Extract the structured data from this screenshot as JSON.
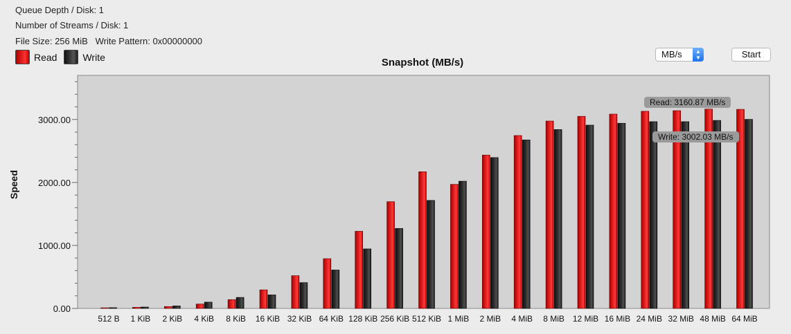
{
  "info": {
    "queue_depth": "Queue Depth / Disk: 1",
    "streams": "Number of Streams / Disk: 1",
    "file_size": "File Size: 256 MiB   Write Pattern: 0x00000000"
  },
  "legend": {
    "read_label": "Read",
    "write_label": "Write"
  },
  "controls": {
    "unit": "MB/s",
    "unit_stepper": "▲▼",
    "start_label": "Start"
  },
  "tooltips": {
    "read": "Read: 3160.87 MB/s",
    "write": "Write: 3002.03 MB/s"
  },
  "colors": {
    "read": "#e02020",
    "write": "#2e2e2e",
    "plot_bg": "#d3d3d3"
  },
  "chart_data": {
    "type": "bar",
    "title": "Snapshot (MB/s)",
    "xlabel": "",
    "ylabel": "Speed",
    "ylim": [
      0,
      3700
    ],
    "yticks": [
      0,
      1000,
      2000,
      3000
    ],
    "ytick_labels": [
      "0.00",
      "1000.00",
      "2000.00",
      "3000.00"
    ],
    "grid": false,
    "legend_position": "top-left",
    "categories": [
      "512 B",
      "1 KiB",
      "2 KiB",
      "4 KiB",
      "8 KiB",
      "16 KiB",
      "32 KiB",
      "64 KiB",
      "128 KiB",
      "256 KiB",
      "512 KiB",
      "1 MiB",
      "2 MiB",
      "4 MiB",
      "8 MiB",
      "12 MiB",
      "16 MiB",
      "24 MiB",
      "32 MiB",
      "48 MiB",
      "64 MiB"
    ],
    "series": [
      {
        "name": "Read",
        "values": [
          10,
          18,
          30,
          70,
          140,
          295,
          520,
          790,
          1225,
          1695,
          2170,
          1970,
          2435,
          2745,
          2975,
          3050,
          3085,
          3130,
          3140,
          3165,
          3160.87
        ]
      },
      {
        "name": "Write",
        "values": [
          12,
          22,
          40,
          100,
          175,
          215,
          410,
          610,
          945,
          1270,
          1715,
          2020,
          2395,
          2675,
          2840,
          2910,
          2940,
          2965,
          2965,
          2985,
          3002.03
        ]
      }
    ]
  }
}
